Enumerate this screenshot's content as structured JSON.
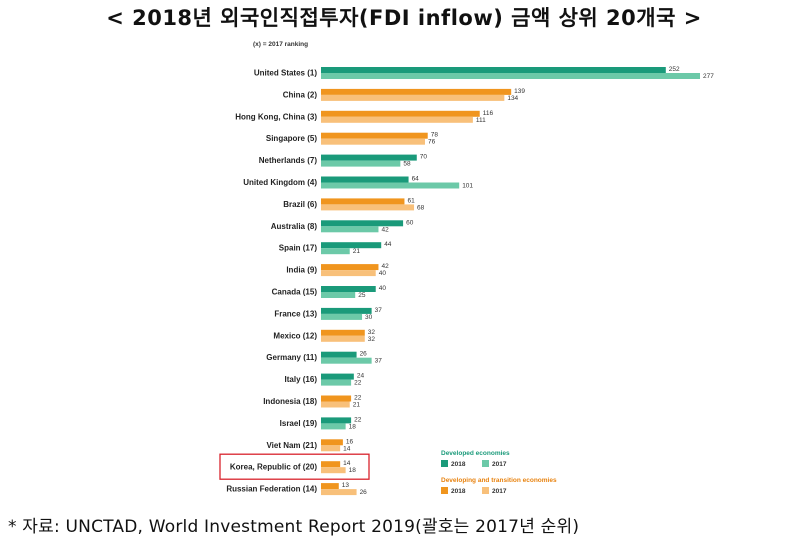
{
  "header": {
    "title": "< 2018년 외국인직접투자(FDI inflow) 금액 상위 20개국 >"
  },
  "footer": {
    "source": "* 자료: UNCTAD, World Investment Report 2019(괄호는 2017년 순위)"
  },
  "chart_data": {
    "type": "bar",
    "orientation": "horizontal",
    "note": "(x) = 2017 ranking",
    "categories": [
      "United States (1)",
      "China (2)",
      "Hong Kong, China (3)",
      "Singapore (5)",
      "Netherlands (7)",
      "United Kingdom (4)",
      "Brazil (6)",
      "Australia (8)",
      "Spain (17)",
      "India (9)",
      "Canada (15)",
      "France (13)",
      "Mexico (12)",
      "Germany (11)",
      "Italy (16)",
      "Indonesia (18)",
      "Israel (19)",
      "Viet Nam (21)",
      "Korea, Republic of (20)",
      "Russian Federation (14)"
    ],
    "group": [
      "developed",
      "developing",
      "developing",
      "developing",
      "developed",
      "developed",
      "developing",
      "developed",
      "developed",
      "developing",
      "developed",
      "developed",
      "developing",
      "developed",
      "developed",
      "developing",
      "developed",
      "developing",
      "developing",
      "developing"
    ],
    "series": [
      {
        "name": "2018",
        "values": [
          252,
          139,
          116,
          78,
          70,
          64,
          61,
          60,
          44,
          42,
          40,
          37,
          32,
          26,
          24,
          22,
          22,
          16,
          14,
          13
        ]
      },
      {
        "name": "2017",
        "values": [
          277,
          134,
          111,
          76,
          58,
          101,
          68,
          42,
          21,
          40,
          25,
          30,
          32,
          37,
          22,
          21,
          18,
          14,
          18,
          26
        ]
      }
    ],
    "colors": {
      "developed_2018": "#1a9a7a",
      "developed_2017": "#6cc9a8",
      "developing_2018": "#f0951e",
      "developing_2017": "#f8c07a"
    },
    "legend": {
      "position": "bottom-right",
      "developed_title": "Developed economies",
      "developing_title": "Developing and transition economies",
      "items": [
        "2018",
        "2017"
      ]
    },
    "highlight": {
      "category": "Korea, Republic of (20)",
      "color": "#d9232d"
    },
    "xlim": [
      0,
      277
    ]
  }
}
